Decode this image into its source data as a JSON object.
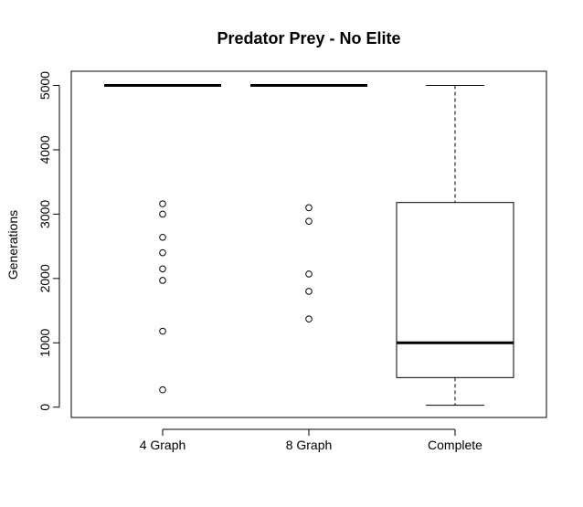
{
  "chart_data": {
    "type": "box",
    "title": "Predator Prey - No Elite",
    "xlabel": "",
    "ylabel": "Generations",
    "ylim": [
      -160,
      5220
    ],
    "yticks": [
      0,
      1000,
      2000,
      3000,
      4000,
      5000
    ],
    "ytick_labels": [
      "0",
      "1000",
      "2000",
      "3000",
      "4000",
      "5000"
    ],
    "categories": [
      "4 Graph",
      "8 Graph",
      "Complete"
    ],
    "boxes": [
      {
        "name": "4 Graph",
        "min": 5000,
        "q1": 5000,
        "median": 5000,
        "q3": 5000,
        "max": 5000,
        "outliers": [
          3160,
          3000,
          2640,
          2400,
          2150,
          1970,
          1180,
          270
        ]
      },
      {
        "name": "8 Graph",
        "min": 5000,
        "q1": 5000,
        "median": 5000,
        "q3": 5000,
        "max": 5000,
        "outliers": [
          3100,
          2890,
          2070,
          1800,
          1370
        ]
      },
      {
        "name": "Complete",
        "min": 30,
        "q1": 460,
        "median": 1000,
        "q3": 3180,
        "max": 5000,
        "outliers": []
      }
    ]
  }
}
